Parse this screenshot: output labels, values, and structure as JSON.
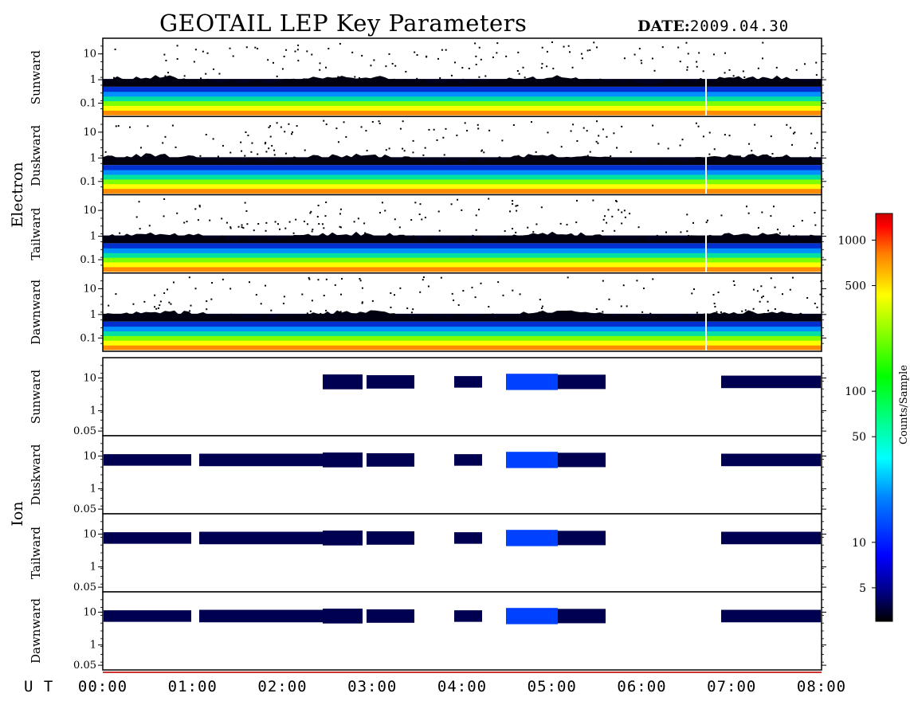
{
  "header": {
    "title": "GEOTAIL LEP Key Parameters",
    "date_label": "DATE:",
    "date_value": "2009.04.30"
  },
  "time_axis": {
    "label": "U T",
    "ticks": [
      "00:00",
      "01:00",
      "02:00",
      "03:00",
      "04:00",
      "05:00",
      "06:00",
      "07:00",
      "08:00"
    ]
  },
  "colorbar": {
    "title": "Counts/Sample",
    "ticks": [
      "1000",
      "500",
      "100",
      "50",
      "10",
      "5"
    ],
    "tick_values": [
      1000,
      500,
      100,
      50,
      10,
      5
    ],
    "range": [
      3,
      1500
    ],
    "scale": "log",
    "colors": [
      "#000000",
      "#000080",
      "#0000ff",
      "#0080ff",
      "#00ffff",
      "#00ff80",
      "#00ff00",
      "#80ff00",
      "#ffff00",
      "#ff8000",
      "#ff0000",
      "#cc0000"
    ]
  },
  "chart_data": {
    "type": "heatmap",
    "title": "GEOTAIL LEP Key Parameters",
    "x_range": [
      "00:00",
      "08:00"
    ],
    "groups": [
      {
        "name": "Electron",
        "panels": [
          {
            "name": "Sunward",
            "y_ticks": [
              "10",
              "1",
              "0.1"
            ],
            "y_tick_values": [
              10,
              1,
              0.1
            ]
          },
          {
            "name": "Duskward",
            "y_ticks": [
              "10",
              "1",
              "0.1"
            ],
            "y_tick_values": [
              10,
              1,
              0.1
            ]
          },
          {
            "name": "Tailward",
            "y_ticks": [
              "10",
              "1",
              "0.1"
            ],
            "y_tick_values": [
              10,
              1,
              0.1
            ]
          },
          {
            "name": "Dawnward",
            "y_ticks": [
              "10",
              "1",
              "0.1"
            ],
            "y_tick_values": [
              10,
              1,
              0.1
            ]
          }
        ]
      },
      {
        "name": "Ion",
        "panels": [
          {
            "name": "Sunward",
            "y_ticks": [
              "10",
              "1",
              "0.05"
            ],
            "y_tick_values": [
              10,
              1,
              0.05
            ]
          },
          {
            "name": "Duskward",
            "y_ticks": [
              "10",
              "1",
              "0.05"
            ],
            "y_tick_values": [
              10,
              1,
              0.05
            ]
          },
          {
            "name": "Tailward",
            "y_ticks": [
              "10",
              "1",
              "0.05"
            ],
            "y_tick_values": [
              10,
              1,
              0.05
            ]
          },
          {
            "name": "Dawnward",
            "y_ticks": [
              "10",
              "1",
              "0.05"
            ],
            "y_tick_values": [
              10,
              1,
              0.05
            ]
          }
        ]
      }
    ]
  }
}
